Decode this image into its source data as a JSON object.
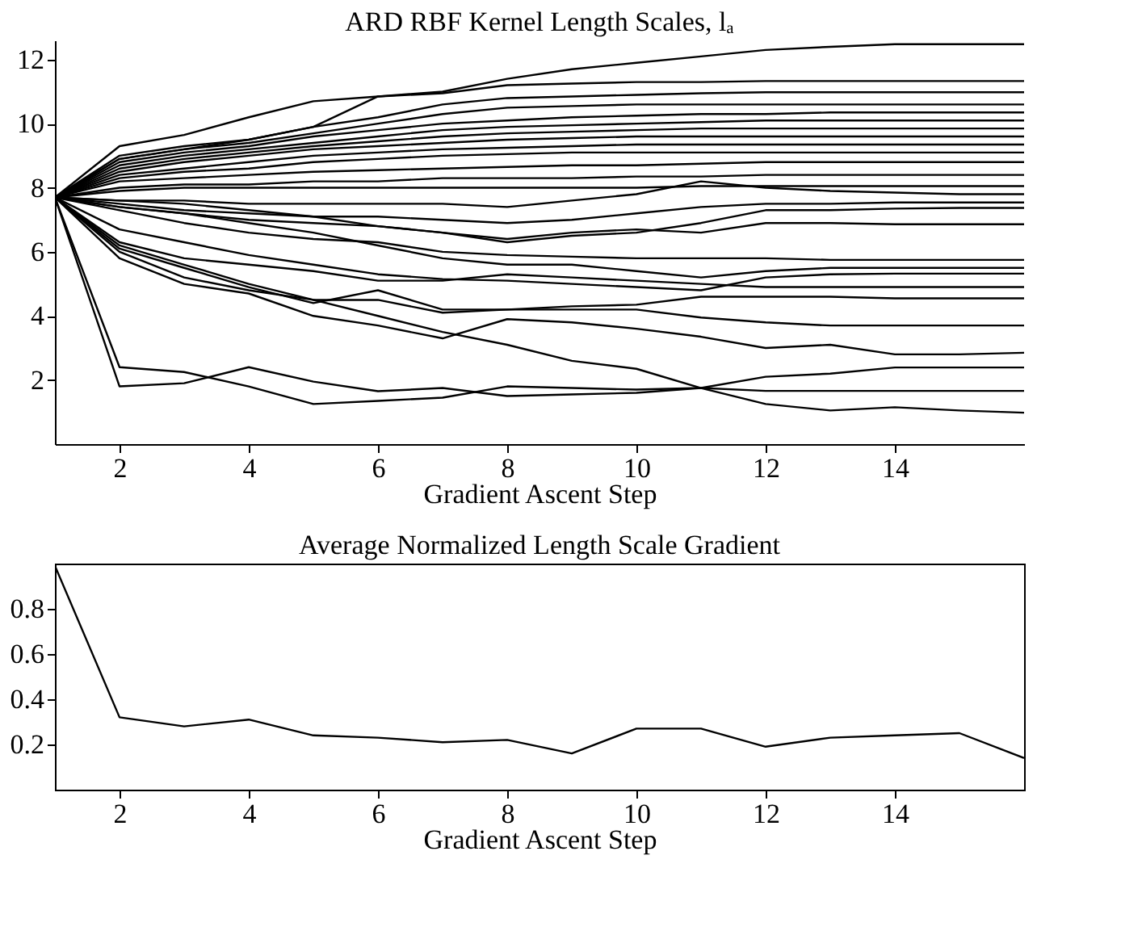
{
  "chart_data": [
    {
      "type": "line",
      "title": "ARD RBF Kernel Length Scales, lₐ",
      "xlabel": "Gradient Ascent Step",
      "x": [
        1,
        2,
        3,
        4,
        5,
        6,
        7,
        8,
        9,
        10,
        11,
        12,
        13,
        14,
        15,
        16
      ],
      "xlim": [
        1,
        16
      ],
      "xticks": [
        2,
        4,
        6,
        8,
        10,
        12,
        14
      ],
      "ylim": [
        0,
        12.6
      ],
      "yticks": [
        2,
        4,
        6,
        8,
        10,
        12
      ],
      "grid": false,
      "legend": false,
      "line_style": "solid",
      "marker": "none",
      "series": [
        {
          "color": "#000000",
          "values": [
            7.7,
            9.3,
            9.65,
            10.2,
            10.7,
            10.85,
            11.0,
            11.4,
            11.7,
            11.9,
            12.1,
            12.3,
            12.4,
            12.48,
            12.48,
            12.48
          ]
        },
        {
          "color": "#000000",
          "values": [
            7.7,
            8.9,
            9.2,
            9.5,
            9.9,
            10.85,
            10.95,
            11.2,
            11.25,
            11.3,
            11.3,
            11.33,
            11.33,
            11.33,
            11.33,
            11.33
          ]
        },
        {
          "color": "#000000",
          "values": [
            7.7,
            9.0,
            9.3,
            9.5,
            9.9,
            10.2,
            10.6,
            10.8,
            10.85,
            10.9,
            10.95,
            10.98,
            10.98,
            10.98,
            10.98,
            10.98
          ]
        },
        {
          "color": "#000000",
          "values": [
            7.7,
            8.9,
            9.2,
            9.4,
            9.7,
            10.0,
            10.3,
            10.5,
            10.55,
            10.6,
            10.6,
            10.6,
            10.6,
            10.6,
            10.6,
            10.6
          ]
        },
        {
          "color": "#000000",
          "values": [
            7.7,
            8.8,
            9.1,
            9.3,
            9.6,
            9.8,
            10.0,
            10.1,
            10.2,
            10.25,
            10.3,
            10.3,
            10.35,
            10.35,
            10.35,
            10.35
          ]
        },
        {
          "color": "#000000",
          "values": [
            7.7,
            8.7,
            9.0,
            9.2,
            9.4,
            9.6,
            9.8,
            9.9,
            9.95,
            10.0,
            10.05,
            10.1,
            10.1,
            10.1,
            10.1,
            10.1
          ]
        },
        {
          "color": "#000000",
          "values": [
            7.7,
            8.6,
            8.9,
            9.1,
            9.3,
            9.45,
            9.6,
            9.7,
            9.75,
            9.8,
            9.85,
            9.85,
            9.85,
            9.85,
            9.85,
            9.85
          ]
        },
        {
          "color": "#000000",
          "values": [
            7.7,
            8.5,
            8.8,
            9.0,
            9.2,
            9.3,
            9.4,
            9.5,
            9.55,
            9.6,
            9.6,
            9.6,
            9.6,
            9.6,
            9.6,
            9.6
          ]
        },
        {
          "color": "#000000",
          "values": [
            7.7,
            8.4,
            8.6,
            8.8,
            9.0,
            9.1,
            9.2,
            9.25,
            9.3,
            9.35,
            9.35,
            9.35,
            9.35,
            9.35,
            9.35,
            9.35
          ]
        },
        {
          "color": "#000000",
          "values": [
            7.7,
            8.3,
            8.5,
            8.6,
            8.8,
            8.9,
            9.0,
            9.05,
            9.1,
            9.1,
            9.1,
            9.1,
            9.1,
            9.1,
            9.1,
            9.1
          ]
        },
        {
          "color": "#000000",
          "values": [
            7.7,
            8.2,
            8.3,
            8.4,
            8.5,
            8.55,
            8.6,
            8.65,
            8.7,
            8.7,
            8.75,
            8.8,
            8.8,
            8.8,
            8.8,
            8.8
          ]
        },
        {
          "color": "#000000",
          "values": [
            7.7,
            8.0,
            8.1,
            8.1,
            8.2,
            8.2,
            8.3,
            8.3,
            8.3,
            8.35,
            8.35,
            8.4,
            8.4,
            8.4,
            8.4,
            8.4
          ]
        },
        {
          "color": "#000000",
          "values": [
            7.7,
            7.9,
            8.0,
            8.0,
            8.0,
            8.0,
            8.0,
            8.0,
            8.0,
            8.0,
            8.05,
            8.05,
            8.05,
            8.05,
            8.05,
            8.05
          ]
        },
        {
          "color": "#000000",
          "values": [
            7.7,
            7.6,
            7.6,
            7.5,
            7.5,
            7.5,
            7.5,
            7.4,
            7.6,
            7.8,
            8.2,
            8.0,
            7.9,
            7.85,
            7.8,
            7.8
          ]
        },
        {
          "color": "#000000",
          "values": [
            7.7,
            7.5,
            7.3,
            7.2,
            7.1,
            7.1,
            7.0,
            6.9,
            7.0,
            7.2,
            7.4,
            7.5,
            7.5,
            7.54,
            7.54,
            7.54
          ]
        },
        {
          "color": "#000000",
          "values": [
            7.7,
            7.4,
            7.2,
            7.0,
            6.9,
            6.8,
            6.6,
            6.3,
            6.5,
            6.6,
            6.9,
            7.3,
            7.3,
            7.35,
            7.37,
            7.37
          ]
        },
        {
          "color": "#000000",
          "values": [
            7.7,
            7.6,
            7.5,
            7.3,
            7.1,
            6.8,
            6.6,
            6.4,
            6.6,
            6.7,
            6.6,
            6.9,
            6.9,
            6.86,
            6.86,
            6.86
          ]
        },
        {
          "color": "#000000",
          "values": [
            7.7,
            7.3,
            6.9,
            6.6,
            6.4,
            6.3,
            6.0,
            5.9,
            5.85,
            5.8,
            5.8,
            5.8,
            5.75,
            5.75,
            5.75,
            5.75
          ]
        },
        {
          "color": "#000000",
          "values": [
            7.7,
            7.4,
            7.2,
            6.9,
            6.6,
            6.2,
            5.8,
            5.6,
            5.6,
            5.4,
            5.2,
            5.4,
            5.5,
            5.5,
            5.5,
            5.5
          ]
        },
        {
          "color": "#000000",
          "values": [
            7.7,
            6.7,
            6.3,
            5.9,
            5.6,
            5.3,
            5.15,
            5.1,
            5.0,
            4.9,
            4.8,
            5.2,
            5.3,
            5.32,
            5.32,
            5.32
          ]
        },
        {
          "color": "#000000",
          "values": [
            7.7,
            6.3,
            5.8,
            5.6,
            5.4,
            5.1,
            5.1,
            5.3,
            5.2,
            5.1,
            5.0,
            4.9,
            4.9,
            4.9,
            4.9,
            4.9
          ]
        },
        {
          "color": "#000000",
          "values": [
            7.7,
            6.1,
            5.5,
            4.9,
            4.4,
            4.8,
            4.2,
            4.2,
            4.3,
            4.35,
            4.6,
            4.6,
            4.6,
            4.55,
            4.55,
            4.55
          ]
        },
        {
          "color": "#000000",
          "values": [
            7.7,
            6.0,
            5.2,
            4.8,
            4.5,
            4.5,
            4.1,
            4.2,
            4.2,
            4.2,
            3.95,
            3.8,
            3.7,
            3.7,
            3.7,
            3.7
          ]
        },
        {
          "color": "#000000",
          "values": [
            7.7,
            5.8,
            5.0,
            4.7,
            4.0,
            3.7,
            3.3,
            3.9,
            3.8,
            3.6,
            3.35,
            3.0,
            3.1,
            2.8,
            2.8,
            2.85
          ]
        },
        {
          "color": "#000000",
          "values": [
            7.7,
            6.2,
            5.6,
            5.0,
            4.5,
            4.0,
            3.5,
            3.1,
            2.6,
            2.35,
            1.75,
            1.25,
            1.05,
            1.15,
            1.05,
            0.98
          ]
        },
        {
          "color": "#000000",
          "values": [
            7.7,
            1.8,
            1.9,
            2.4,
            1.95,
            1.65,
            1.75,
            1.5,
            1.55,
            1.6,
            1.75,
            2.1,
            2.2,
            2.39,
            2.39,
            2.39
          ]
        },
        {
          "color": "#000000",
          "values": [
            7.7,
            2.4,
            2.25,
            1.8,
            1.25,
            1.35,
            1.45,
            1.8,
            1.75,
            1.7,
            1.75,
            1.66,
            1.66,
            1.66,
            1.66,
            1.66
          ]
        }
      ]
    },
    {
      "type": "line",
      "title": "Average Normalized Length Scale Gradient",
      "xlabel": "Gradient Ascent Step",
      "x": [
        1,
        2,
        3,
        4,
        5,
        6,
        7,
        8,
        9,
        10,
        11,
        12,
        13,
        14,
        15,
        16
      ],
      "xlim": [
        1,
        16
      ],
      "xticks": [
        2,
        4,
        6,
        8,
        10,
        12,
        14
      ],
      "ylim": [
        0,
        1
      ],
      "yticks": [
        0.2,
        0.4,
        0.6,
        0.8
      ],
      "grid": false,
      "legend": false,
      "line_style": "solid",
      "marker": "none",
      "series": [
        {
          "color": "#000000",
          "values": [
            0.99,
            0.32,
            0.28,
            0.31,
            0.24,
            0.23,
            0.21,
            0.22,
            0.16,
            0.27,
            0.27,
            0.19,
            0.23,
            0.24,
            0.25,
            0.14
          ]
        }
      ]
    }
  ]
}
